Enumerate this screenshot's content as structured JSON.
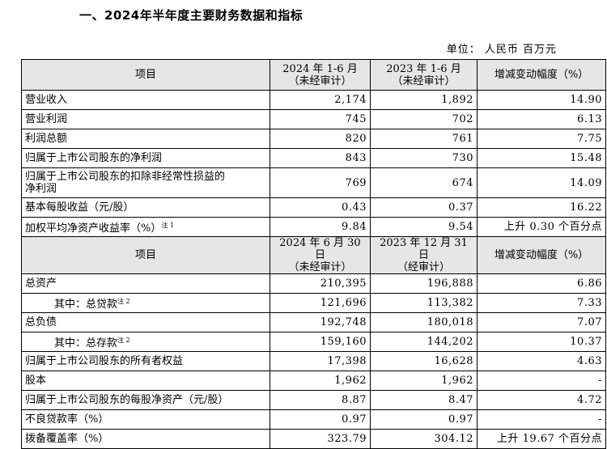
{
  "title": "一、2024年半年度主要财务数据和指标",
  "unit": "单位：  人民币  百万元",
  "header1": {
    "col0": "项目",
    "col1_line1": "2024 年 1-6 月",
    "col1_line2": "（未经审计）",
    "col2_line1": "2023 年 1-6 月",
    "col2_line2": "（未经审计）",
    "col3": "增减变动幅度（%）"
  },
  "rows1": [
    {
      "name": "营业收入",
      "v1": "2,174",
      "v2": "1,892",
      "v3": "14.90"
    },
    {
      "name": "营业利润",
      "v1": "745",
      "v2": "702",
      "v3": "6.13"
    },
    {
      "name": "利润总额",
      "v1": "820",
      "v2": "761",
      "v3": "7.75"
    },
    {
      "name": "归属于上市公司股东的净利润",
      "v1": "843",
      "v2": "730",
      "v3": "15.48"
    },
    {
      "name_line1": "归属于上市公司股东的扣除非经常性损益的",
      "name_line2": "净利润",
      "v1": "769",
      "v2": "674",
      "v3": "14.09"
    },
    {
      "name": "基本每股收益（元/股）",
      "v1": "0.43",
      "v2": "0.37",
      "v3": "16.22"
    },
    {
      "name": "加权平均净资产收益率（%）",
      "note": "注 1",
      "v1": "9.84",
      "v2": "9.54",
      "v3": "上升 0.30 个百分点"
    }
  ],
  "header2": {
    "col0": "项目",
    "col1_line1": "2024 年 6 月 30 日",
    "col1_line2": "（未经审计）",
    "col2_line1": "2023 年 12 月 31 日",
    "col2_line2": "（经审计）",
    "col3": "增减变动幅度（%）"
  },
  "rows2": [
    {
      "name": "总资产",
      "v1": "210,395",
      "v2": "196,888",
      "v3": "6.86"
    },
    {
      "name": "其中：总贷款",
      "note": "注 2",
      "indent": true,
      "v1": "121,696",
      "v2": "113,382",
      "v3": "7.33"
    },
    {
      "name": "总负债",
      "v1": "192,748",
      "v2": "180,018",
      "v3": "7.07"
    },
    {
      "name": "其中：总存款",
      "note": "注 2",
      "indent": true,
      "v1": "159,160",
      "v2": "144,202",
      "v3": "10.37"
    },
    {
      "name": "归属于上市公司股东的所有者权益",
      "v1": "17,398",
      "v2": "16,628",
      "v3": "4.63"
    },
    {
      "name": "股本",
      "v1": "1,962",
      "v2": "1,962",
      "v3": "-"
    },
    {
      "name": "归属于上市公司股东的每股净资产（元/股）",
      "v1": "8.87",
      "v2": "8.47",
      "v3": "4.72"
    },
    {
      "name": "不良贷款率（%）",
      "v1": "0.97",
      "v2": "0.97",
      "v3": "-"
    },
    {
      "name": "拨备覆盖率（%）",
      "v1": "323.79",
      "v2": "304.12",
      "v3": "上升 19.67 个百分点"
    }
  ]
}
